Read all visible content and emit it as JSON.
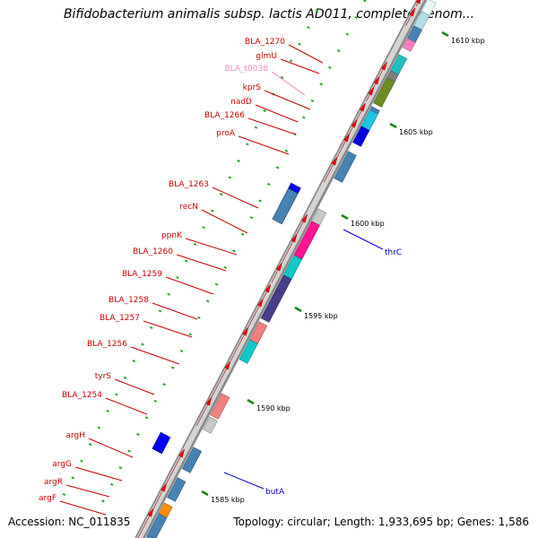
{
  "title": "Bifidobacterium animalis subsp. lactis AD011, complete genom...",
  "footer": {
    "accession": "Accession: NC_011835",
    "summary": "Topology: circular; Length: 1,933,695 bp; Genes: 1,586"
  },
  "scale_labels": [
    "1585 kbp",
    "1590 kbp",
    "1595 kbp",
    "1600 kbp",
    "1605 kbp",
    "1610 kbp"
  ],
  "left_labels": [
    {
      "text": "BLA_1270",
      "color": "#cc0000"
    },
    {
      "text": "glmU",
      "color": "#cc0000"
    },
    {
      "text": "BLA_t0038",
      "color": "#ee88bb"
    },
    {
      "text": "kprS",
      "color": "#cc0000"
    },
    {
      "text": "nadD",
      "color": "#cc0000"
    },
    {
      "text": "BLA_1266",
      "color": "#cc0000"
    },
    {
      "text": "proA",
      "color": "#cc0000"
    },
    {
      "text": "BLA_1263",
      "color": "#cc0000"
    },
    {
      "text": "recN",
      "color": "#cc0000"
    },
    {
      "text": "ppnK",
      "color": "#cc0000"
    },
    {
      "text": "BLA_1260",
      "color": "#cc0000"
    },
    {
      "text": "BLA_1259",
      "color": "#cc0000"
    },
    {
      "text": "BLA_1258",
      "color": "#cc0000"
    },
    {
      "text": "BLA_1257",
      "color": "#cc0000"
    },
    {
      "text": "BLA_1256",
      "color": "#cc0000"
    },
    {
      "text": "tyrS",
      "color": "#cc0000"
    },
    {
      "text": "BLA_1254",
      "color": "#cc0000"
    },
    {
      "text": "argH",
      "color": "#cc0000"
    },
    {
      "text": "argG",
      "color": "#cc0000"
    },
    {
      "text": "argR",
      "color": "#cc0000"
    },
    {
      "text": "argF",
      "color": "#cc0000"
    }
  ],
  "right_labels": [
    {
      "text": "thrC",
      "color": "#0000cc"
    },
    {
      "text": "butA",
      "color": "#0000cc"
    }
  ],
  "colors": {
    "cds_forward": "#ff0000",
    "cds_reverse": "#0000ff",
    "backbone": "#a0a0a0",
    "tick_major": "#118811",
    "tick_minor": "#22aa22"
  }
}
